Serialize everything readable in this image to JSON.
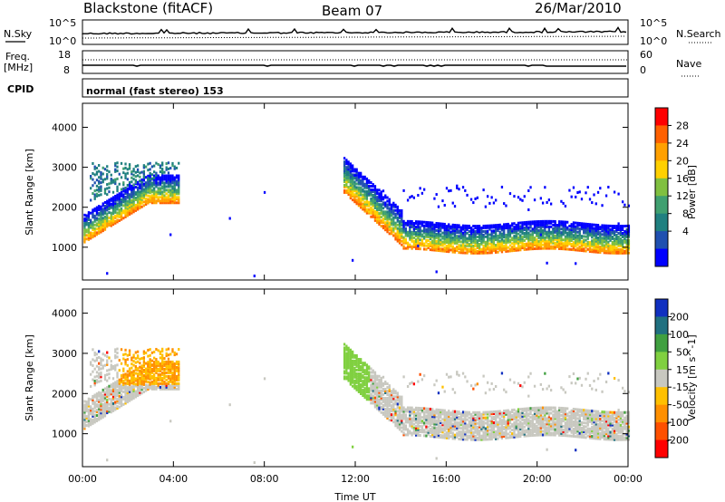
{
  "header": {
    "station": "Blackstone (fitACF)",
    "beam": "Beam 07",
    "date": "26/Mar/2010"
  },
  "labels": {
    "nsky": "N.Sky",
    "freq_line1": "Freq.",
    "freq_line2": "[MHz]",
    "cpid": "CPID",
    "nsearch": "N.Search",
    "nave": "Nave",
    "cpid_text": "normal (fast stereo) 153",
    "x_axis": "Time UT"
  },
  "noise_panel": {
    "left_ticks": [
      "10^5",
      "10^0"
    ],
    "right_ticks": [
      "10^5",
      "10^0"
    ]
  },
  "freq_panel": {
    "left_ticks": [
      "18",
      "8"
    ],
    "right_ticks": [
      "60",
      "0"
    ]
  },
  "power_scale": {
    "title": "Power [dB]",
    "ticks": [
      "28",
      "24",
      "20",
      "16",
      "12",
      "8",
      "4"
    ],
    "colors": [
      "#ff0000",
      "#ff6000",
      "#ffa000",
      "#ffd000",
      "#80c040",
      "#40a070",
      "#208080",
      "#2050b0",
      "#0000ff"
    ]
  },
  "velocity_scale": {
    "title": "Velocity [m s^-1]",
    "ticks": [
      "200",
      "100",
      "50",
      "15",
      "-15",
      "-50",
      "-100",
      "-200"
    ],
    "colors": [
      "#1030c0",
      "#207080",
      "#40a040",
      "#80d040",
      "#c8c8c0",
      "#ffc000",
      "#ff9000",
      "#ff5000",
      "#ff0000"
    ]
  },
  "chart_data": [
    {
      "type": "heatmap",
      "ylabel": "Slant Range [km]",
      "xlabel": "Time UT",
      "x_ticks": [
        "00:00",
        "04:00",
        "08:00",
        "12:00",
        "16:00",
        "20:00",
        "00:00"
      ],
      "y_ticks": [
        1000,
        2000,
        3000,
        4000
      ],
      "xlim": [
        0,
        24
      ],
      "ylim": [
        180,
        4600
      ],
      "colorbar": "Power [dB]",
      "colorbar_range": [
        0,
        32
      ]
    },
    {
      "type": "heatmap",
      "ylabel": "Slant Range [km]",
      "xlabel": "Time UT",
      "x_ticks": [
        "00:00",
        "04:00",
        "08:00",
        "12:00",
        "16:00",
        "20:00",
        "00:00"
      ],
      "y_ticks": [
        1000,
        2000,
        3000,
        4000
      ],
      "xlim": [
        0,
        24
      ],
      "ylim": [
        180,
        4600
      ],
      "colorbar": "Velocity [m s^-1]",
      "colorbar_range": [
        -250,
        250
      ]
    }
  ]
}
